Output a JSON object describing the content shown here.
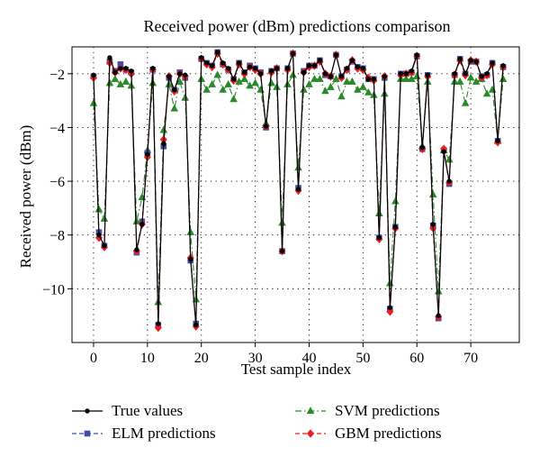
{
  "chart_data": {
    "type": "line",
    "title": "Received power (dBm) predictions comparison",
    "xlabel": "Test sample index",
    "ylabel": "Received power (dBm)",
    "xlim": [
      -4,
      79
    ],
    "ylim": [
      -12.0,
      -1.0
    ],
    "xticks": [
      0,
      10,
      20,
      30,
      40,
      50,
      60,
      70
    ],
    "yticks": [
      -2,
      -4,
      -6,
      -8,
      -10
    ],
    "grid": true,
    "legend_position": "bottom",
    "series": [
      {
        "name": "True values",
        "color": "#000000",
        "marker": "circle",
        "dash": "solid",
        "values": [
          -2.05,
          -8.0,
          -8.4,
          -1.4,
          -1.95,
          -1.8,
          -1.8,
          -1.9,
          -8.55,
          -7.6,
          -5.0,
          -1.8,
          -11.3,
          -4.6,
          -2.1,
          -2.6,
          -2.0,
          -2.05,
          -8.9,
          -11.35,
          -1.4,
          -1.6,
          -1.7,
          -1.2,
          -1.6,
          -1.8,
          -2.2,
          -1.6,
          -1.95,
          -1.75,
          -1.8,
          -2.0,
          -3.95,
          -1.9,
          -1.8,
          -8.6,
          -1.8,
          -1.25,
          -6.3,
          -1.95,
          -1.7,
          -1.7,
          -1.5,
          -2.0,
          -2.1,
          -1.3,
          -2.1,
          -1.8,
          -1.5,
          -1.75,
          -1.8,
          -2.2,
          -2.2,
          -8.1,
          -2.1,
          -10.7,
          -7.7,
          -2.0,
          -2.0,
          -1.9,
          -1.3,
          -4.75,
          -2.05,
          -7.6,
          -11.0,
          -4.9,
          -6.0,
          -2.0,
          -1.45,
          -2.0,
          -1.5,
          -1.55,
          -2.1,
          -2.0,
          -1.6,
          -4.5,
          -1.7
        ]
      },
      {
        "name": "ELM predictions",
        "color": "#3c4ea8",
        "marker": "square",
        "dash": "dashed",
        "values": [
          -2.1,
          -7.9,
          -8.4,
          -1.55,
          -1.9,
          -1.65,
          -1.85,
          -1.95,
          -8.65,
          -7.5,
          -4.95,
          -1.85,
          -11.35,
          -4.7,
          -2.15,
          -2.6,
          -1.95,
          -2.15,
          -8.95,
          -11.3,
          -1.45,
          -1.6,
          -1.7,
          -1.2,
          -1.65,
          -1.85,
          -2.2,
          -1.6,
          -1.95,
          -1.7,
          -1.8,
          -1.95,
          -4.0,
          -1.9,
          -1.8,
          -8.6,
          -1.8,
          -1.25,
          -6.25,
          -1.9,
          -1.7,
          -1.7,
          -1.5,
          -2.05,
          -2.1,
          -1.3,
          -2.1,
          -1.85,
          -1.55,
          -1.75,
          -1.8,
          -2.2,
          -2.2,
          -8.1,
          -2.15,
          -10.75,
          -7.7,
          -2.0,
          -2.0,
          -1.95,
          -1.35,
          -4.8,
          -2.05,
          -7.65,
          -11.1,
          -4.85,
          -6.1,
          -2.05,
          -1.45,
          -2.0,
          -1.55,
          -1.55,
          -2.1,
          -2.05,
          -1.6,
          -4.5,
          -1.75
        ]
      },
      {
        "name": "SVM predictions",
        "color": "#2a8a2a",
        "marker": "triangle",
        "dash": "dashdot",
        "values": [
          -3.1,
          -7.05,
          -7.4,
          -2.35,
          -2.2,
          -2.4,
          -2.3,
          -2.45,
          -7.5,
          -6.6,
          -4.85,
          -2.35,
          -10.5,
          -4.1,
          -2.4,
          -3.3,
          -2.3,
          -2.9,
          -7.9,
          -10.4,
          -2.2,
          -2.6,
          -2.4,
          -2.05,
          -2.6,
          -2.4,
          -2.95,
          -2.3,
          -2.2,
          -2.45,
          -2.35,
          -2.6,
          -3.85,
          -2.35,
          -2.5,
          -7.55,
          -2.4,
          -2.05,
          -5.5,
          -2.6,
          -2.4,
          -2.2,
          -2.2,
          -2.65,
          -2.5,
          -2.2,
          -2.85,
          -2.3,
          -2.3,
          -2.6,
          -2.5,
          -2.7,
          -2.8,
          -7.2,
          -2.75,
          -9.8,
          -6.75,
          -2.2,
          -2.2,
          -2.2,
          -2.1,
          -4.7,
          -2.3,
          -6.5,
          -10.1,
          -4.85,
          -5.2,
          -2.3,
          -2.3,
          -3.1,
          -2.15,
          -2.3,
          -2.2,
          -2.75,
          -2.6,
          -4.5,
          -2.2
        ]
      },
      {
        "name": "GBM predictions",
        "color": "#ee1c1c",
        "marker": "diamond",
        "dash": "dashed",
        "values": [
          -2.15,
          -8.1,
          -8.45,
          -1.6,
          -1.95,
          -1.8,
          -1.85,
          -2.0,
          -8.6,
          -7.6,
          -5.1,
          -1.85,
          -11.45,
          -4.45,
          -2.1,
          -2.65,
          -2.0,
          -2.1,
          -8.85,
          -11.4,
          -1.45,
          -1.65,
          -1.75,
          -1.25,
          -1.65,
          -1.85,
          -2.25,
          -1.65,
          -2.0,
          -1.75,
          -1.85,
          -2.0,
          -3.95,
          -1.95,
          -1.8,
          -8.6,
          -1.85,
          -1.25,
          -6.35,
          -1.95,
          -1.75,
          -1.7,
          -1.55,
          -2.0,
          -2.1,
          -1.3,
          -2.15,
          -1.85,
          -1.5,
          -1.8,
          -1.85,
          -2.15,
          -2.25,
          -8.15,
          -2.1,
          -10.85,
          -7.75,
          -2.05,
          -2.0,
          -1.95,
          -1.35,
          -4.8,
          -2.1,
          -7.75,
          -11.05,
          -4.8,
          -6.05,
          -2.05,
          -1.5,
          -2.05,
          -1.5,
          -1.55,
          -2.15,
          -2.05,
          -1.65,
          -4.55,
          -1.75
        ]
      }
    ]
  }
}
